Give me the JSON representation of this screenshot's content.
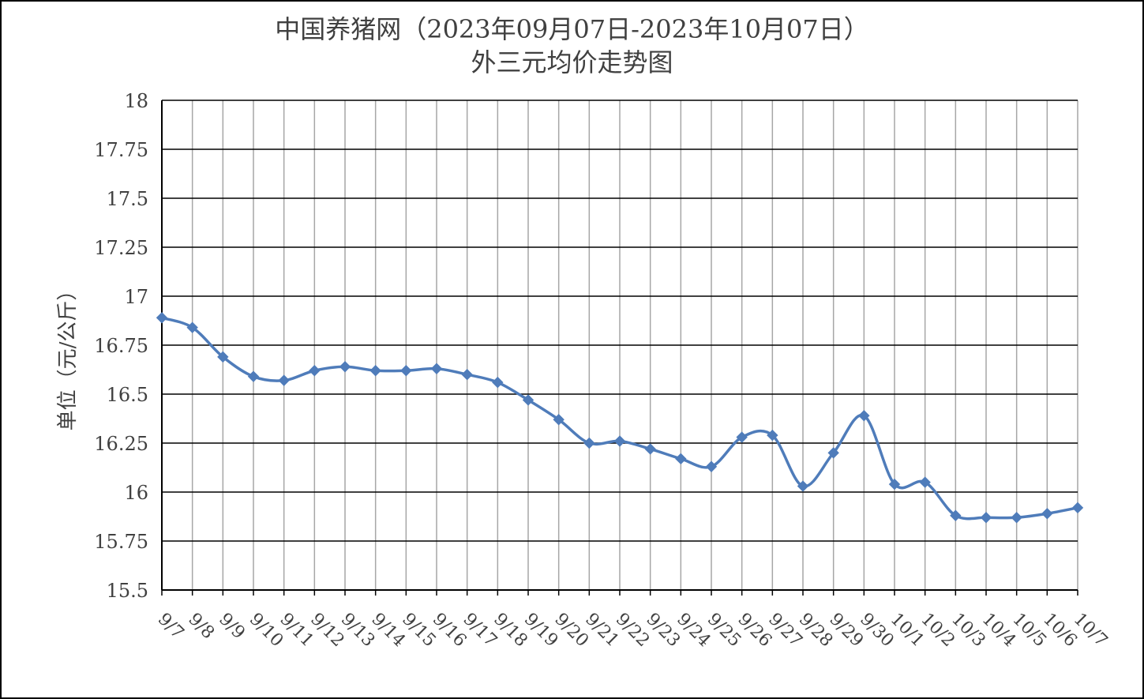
{
  "chart_data": {
    "type": "line",
    "title": "中国养猪网（2023年09月07日-2023年10月07日）",
    "subtitle": "外三元均价走势图",
    "ylabel": "单位（元/公斤）",
    "xlabel": "",
    "ylim": [
      15.5,
      18
    ],
    "yticks": [
      "15.5",
      "15.75",
      "16",
      "16.25",
      "16.5",
      "16.75",
      "17",
      "17.25",
      "17.5",
      "17.75",
      "18"
    ],
    "grid": true,
    "legend": "none",
    "line_color": "#4F7CBA",
    "categories": [
      "9/7",
      "9/8",
      "9/9",
      "9/10",
      "9/11",
      "9/12",
      "9/13",
      "9/14",
      "9/15",
      "9/16",
      "9/17",
      "9/18",
      "9/19",
      "9/20",
      "9/21",
      "9/22",
      "9/23",
      "9/24",
      "9/25",
      "9/26",
      "9/27",
      "9/28",
      "9/29",
      "9/30",
      "10/1",
      "10/2",
      "10/3",
      "10/4",
      "10/5",
      "10/6",
      "10/7"
    ],
    "series": [
      {
        "values": [
          16.89,
          16.84,
          16.69,
          16.59,
          16.57,
          16.62,
          16.64,
          16.62,
          16.62,
          16.63,
          16.6,
          16.56,
          16.47,
          16.37,
          16.25,
          16.26,
          16.22,
          16.17,
          16.13,
          16.28,
          16.29,
          16.03,
          16.2,
          16.39,
          16.04,
          16.05,
          15.88,
          15.87,
          15.87,
          15.89,
          15.92
        ]
      }
    ]
  }
}
